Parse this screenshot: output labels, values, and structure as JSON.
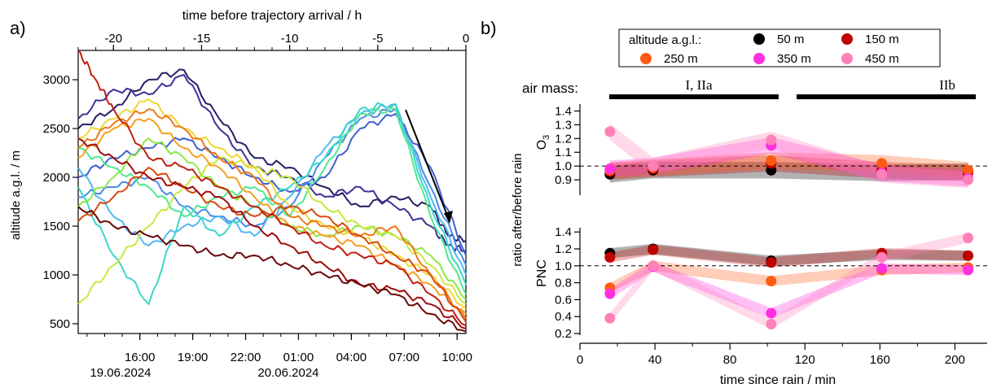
{
  "panel_a": {
    "label": "a)",
    "top_axis_title": "time before trajectory arrival / h",
    "top_ticks": [
      -20,
      -15,
      -10,
      -5,
      0
    ],
    "ylabel": "altitude a.g.l. / m",
    "y_ticks": [
      500,
      1000,
      1500,
      2000,
      2500,
      3000
    ],
    "bottom_ticks": [
      "16:00",
      "19:00",
      "22:00",
      "01:00",
      "04:00",
      "07:00",
      "10:00"
    ],
    "date_labels": [
      "19.06.2024",
      "20.06.2024"
    ]
  },
  "panel_b": {
    "label": "b)",
    "legend": {
      "title": "altitude a.g.l.:",
      "entries": [
        {
          "label": "50 m",
          "color": "#000000"
        },
        {
          "label": "150 m",
          "color": "#c00000"
        },
        {
          "label": "250 m",
          "color": "#ff5a14"
        },
        {
          "label": "350 m",
          "color": "#ff30e0"
        },
        {
          "label": "450 m",
          "color": "#ff80b8"
        }
      ]
    },
    "air_mass": {
      "label": "air mass:",
      "segments": [
        "I, IIa",
        "IIb"
      ]
    },
    "shared_ylabel": "ratio after/before rain",
    "xlabel": "time since rain / min",
    "x_ticks": [
      0,
      40,
      80,
      120,
      160,
      200
    ],
    "o3_ylabel": "O3",
    "pnc_ylabel": "PNC",
    "o3_y_ticks": [
      "0.9",
      "1.0",
      "1.1",
      "1.2",
      "1.3",
      "1.4"
    ],
    "pnc_y_ticks": [
      "0.2",
      "0.4",
      "0.6",
      "0.8",
      "1.0",
      "1.2",
      "1.4"
    ]
  },
  "chart_data": [
    {
      "type": "line",
      "xlabel": "time before trajectory arrival / h",
      "ylabel": "altitude a.g.l. / m",
      "xlim": [
        -22,
        0
      ],
      "ylim": [
        400,
        3300
      ],
      "series": [
        {
          "color": "#281c64",
          "x": [
            -22,
            -20,
            -18,
            -16,
            -14,
            -12,
            -10,
            -8,
            -6,
            -4,
            -2,
            -1,
            0
          ],
          "y": [
            2500,
            2700,
            3000,
            3100,
            2600,
            2200,
            2100,
            1900,
            1700,
            1800,
            1700,
            1400,
            1350
          ]
        },
        {
          "color": "#3c3296",
          "x": [
            -22,
            -20,
            -18,
            -16,
            -14,
            -12,
            -10,
            -8,
            -6,
            -4,
            -2,
            -1,
            0
          ],
          "y": [
            2600,
            2900,
            2850,
            3050,
            2500,
            2100,
            2000,
            1800,
            1900,
            1700,
            1500,
            1300,
            1250
          ]
        },
        {
          "color": "#3f5fd0",
          "x": [
            -22,
            -20,
            -18,
            -16,
            -14,
            -12,
            -10,
            -8,
            -6,
            -4,
            -2,
            0
          ],
          "y": [
            2000,
            2200,
            2300,
            2400,
            2200,
            2000,
            1850,
            2000,
            2500,
            2650,
            2100,
            1200
          ]
        },
        {
          "color": "#4a8ae8",
          "x": [
            -22,
            -20,
            -18,
            -16,
            -14,
            -12,
            -10,
            -8,
            -6,
            -4,
            -2,
            0
          ],
          "y": [
            1800,
            1900,
            2000,
            1700,
            1600,
            1500,
            1700,
            2200,
            2600,
            2700,
            1900,
            1100
          ]
        },
        {
          "color": "#52b8f0",
          "x": [
            -22,
            -20,
            -18,
            -16,
            -14,
            -12,
            -10,
            -8,
            -6,
            -4,
            -2,
            0
          ],
          "y": [
            2100,
            1600,
            1300,
            1500,
            1600,
            1400,
            1800,
            2300,
            2650,
            2750,
            1800,
            1000
          ]
        },
        {
          "color": "#38d8c8",
          "x": [
            -22,
            -20,
            -18,
            -16,
            -14,
            -12,
            -10,
            -8,
            -6,
            -4,
            -2,
            0
          ],
          "y": [
            1900,
            1200,
            700,
            1700,
            1400,
            1700,
            1900,
            2200,
            2700,
            2750,
            1700,
            900
          ]
        },
        {
          "color": "#50e890",
          "x": [
            -22,
            -20,
            -18,
            -16,
            -14,
            -12,
            -10,
            -8,
            -6,
            -4,
            -2,
            0
          ],
          "y": [
            2300,
            2100,
            1900,
            1600,
            1800,
            1900,
            1600,
            2100,
            2650,
            2700,
            1600,
            800
          ]
        },
        {
          "color": "#8ce84a",
          "x": [
            -22,
            -20,
            -18,
            -16,
            -14,
            -12,
            -10,
            -8,
            -6,
            -4,
            -2,
            0
          ],
          "y": [
            1700,
            2000,
            2400,
            2200,
            1900,
            1700,
            1500,
            1400,
            1500,
            1400,
            1200,
            750
          ]
        },
        {
          "color": "#c8e840",
          "x": [
            -22,
            -20,
            -18,
            -16,
            -14,
            -12,
            -10,
            -8,
            -6,
            -4,
            -2,
            0
          ],
          "y": [
            700,
            1100,
            1500,
            1900,
            2200,
            2100,
            2000,
            1700,
            1500,
            1400,
            1100,
            700
          ]
        },
        {
          "color": "#f0d830",
          "x": [
            -22,
            -20,
            -18,
            -16,
            -14,
            -12,
            -10,
            -8,
            -6,
            -4,
            -2,
            0
          ],
          "y": [
            2400,
            2600,
            2800,
            2500,
            2300,
            2100,
            1700,
            1500,
            1400,
            1200,
            1000,
            650
          ]
        },
        {
          "color": "#f5a020",
          "x": [
            -22,
            -20,
            -18,
            -16,
            -14,
            -12,
            -10,
            -8,
            -6,
            -4,
            -2,
            0
          ],
          "y": [
            2200,
            2500,
            2600,
            2300,
            2100,
            1800,
            1500,
            1400,
            1300,
            1100,
            900,
            600
          ]
        },
        {
          "color": "#f07818",
          "x": [
            -22,
            -20,
            -18,
            -16,
            -14,
            -12,
            -10,
            -8,
            -6,
            -4,
            -2,
            0
          ],
          "y": [
            2300,
            2550,
            2700,
            2500,
            2200,
            2000,
            1600,
            1500,
            1400,
            1500,
            1000,
            550
          ]
        },
        {
          "color": "#d84a10",
          "x": [
            -22,
            -20,
            -18,
            -16,
            -14,
            -12,
            -10,
            -8,
            -6,
            -4,
            -2,
            0
          ],
          "y": [
            1550,
            1800,
            2100,
            1900,
            1700,
            1600,
            1700,
            1600,
            1400,
            1200,
            1000,
            520
          ]
        },
        {
          "color": "#c02010",
          "x": [
            -22,
            -21,
            -20,
            -18,
            -16,
            -14,
            -12,
            -10,
            -8,
            -6,
            -4,
            -2,
            0
          ],
          "y": [
            3300,
            3000,
            2700,
            2200,
            2100,
            1900,
            1700,
            1500,
            1300,
            1200,
            1100,
            800,
            480
          ]
        },
        {
          "color": "#a00c0c",
          "x": [
            -22,
            -20,
            -18,
            -16,
            -14,
            -12,
            -10,
            -8,
            -6,
            -4,
            -2,
            0
          ],
          "y": [
            2400,
            2200,
            2000,
            1900,
            1800,
            1500,
            1300,
            1100,
            900,
            850,
            700,
            450
          ]
        },
        {
          "color": "#6a0808",
          "x": [
            -22,
            -20,
            -18,
            -16,
            -14,
            -12,
            -10,
            -8,
            -6,
            -4,
            -2,
            0
          ],
          "y": [
            1700,
            1500,
            1400,
            1300,
            1200,
            1200,
            1100,
            1000,
            900,
            800,
            600,
            420
          ]
        }
      ]
    },
    {
      "type": "scatter",
      "panel": "O3",
      "xlabel": "time since rain / min",
      "ylabel": "O3",
      "ylim": [
        0.8,
        1.45
      ],
      "xlim": [
        0,
        212
      ],
      "series": [
        {
          "name": "50 m",
          "color": "#000000",
          "x": [
            16,
            39,
            102,
            161,
            207
          ],
          "y": [
            0.94,
            0.97,
            0.97,
            0.95,
            0.96
          ]
        },
        {
          "name": "150 m",
          "color": "#c00000",
          "x": [
            16,
            39,
            102,
            161,
            207
          ],
          "y": [
            0.96,
            0.98,
            1.02,
            0.97,
            0.95
          ]
        },
        {
          "name": "250 m",
          "color": "#ff5a14",
          "x": [
            16,
            39,
            102,
            161,
            207
          ],
          "y": [
            0.97,
            0.99,
            1.04,
            1.02,
            0.97
          ]
        },
        {
          "name": "350 m",
          "color": "#ff30e0",
          "x": [
            16,
            39,
            102,
            161,
            207
          ],
          "y": [
            0.98,
            1.0,
            1.15,
            0.95,
            0.91
          ]
        },
        {
          "name": "450 m",
          "color": "#ff80b8",
          "x": [
            16,
            39,
            102,
            161,
            207
          ],
          "y": [
            1.25,
            1.0,
            1.19,
            0.94,
            0.9
          ]
        }
      ]
    },
    {
      "type": "scatter",
      "panel": "PNC",
      "xlabel": "time since rain / min",
      "ylabel": "PNC",
      "ylim": [
        0.2,
        1.45
      ],
      "xlim": [
        0,
        212
      ],
      "series": [
        {
          "name": "50 m",
          "color": "#000000",
          "x": [
            16,
            39,
            102,
            161,
            207
          ],
          "y": [
            1.15,
            1.2,
            1.06,
            1.13,
            1.12
          ]
        },
        {
          "name": "150 m",
          "color": "#c00000",
          "x": [
            16,
            39,
            102,
            161,
            207
          ],
          "y": [
            1.1,
            1.19,
            1.04,
            1.15,
            1.12
          ]
        },
        {
          "name": "250 m",
          "color": "#ff5a14",
          "x": [
            16,
            39,
            102,
            161,
            207
          ],
          "y": [
            0.74,
            1.0,
            0.82,
            0.95,
            0.98
          ]
        },
        {
          "name": "350 m",
          "color": "#ff30e0",
          "x": [
            16,
            39,
            102,
            161,
            207
          ],
          "y": [
            0.67,
            0.99,
            0.44,
            0.97,
            0.95
          ]
        },
        {
          "name": "450 m",
          "color": "#ff80b8",
          "x": [
            16,
            39,
            102,
            161,
            207
          ],
          "y": [
            0.38,
            1.0,
            0.31,
            1.1,
            1.33
          ]
        }
      ]
    }
  ]
}
